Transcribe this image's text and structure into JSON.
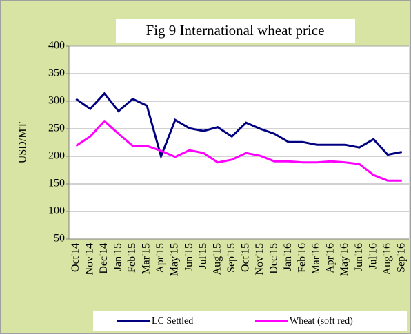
{
  "chart_data": {
    "type": "line",
    "title": "Fig 9 International wheat price",
    "y_label": "USD/MT",
    "categories": [
      "Oct'14",
      "Nov'14",
      "Dec'14",
      "Jan'15",
      "Feb'15",
      "Mar'15",
      "Apr'15",
      "May'15",
      "Jun'15",
      "Jul'15",
      "Aug'15",
      "Sep'15",
      "Oct'15",
      "Nov'15",
      "Dec'15",
      "Jan'16",
      "Feb'16",
      "Mar'16",
      "Apr'16",
      "May'16",
      "Jun'16",
      "Jul'16",
      "Aug'16",
      "Sep'16"
    ],
    "series": [
      {
        "name": "LC Settled",
        "color": "#000080",
        "values": [
          304,
          286,
          314,
          282,
          304,
          292,
          200,
          266,
          251,
          246,
          253,
          236,
          261,
          250,
          241,
          226,
          226,
          221,
          221,
          221,
          216,
          231,
          203,
          208
        ]
      },
      {
        "name": "Wheat (soft red)",
        "color": "#ff00ff",
        "values": [
          219,
          236,
          264,
          241,
          219,
          219,
          210,
          199,
          211,
          206,
          189,
          194,
          206,
          201,
          191,
          191,
          189,
          189,
          191,
          189,
          186,
          166,
          156,
          156
        ]
      }
    ],
    "ylim": [
      50,
      400
    ],
    "yticks": [
      50,
      100,
      150,
      200,
      250,
      300,
      350,
      400
    ],
    "grid": true,
    "legend": "bottom"
  }
}
